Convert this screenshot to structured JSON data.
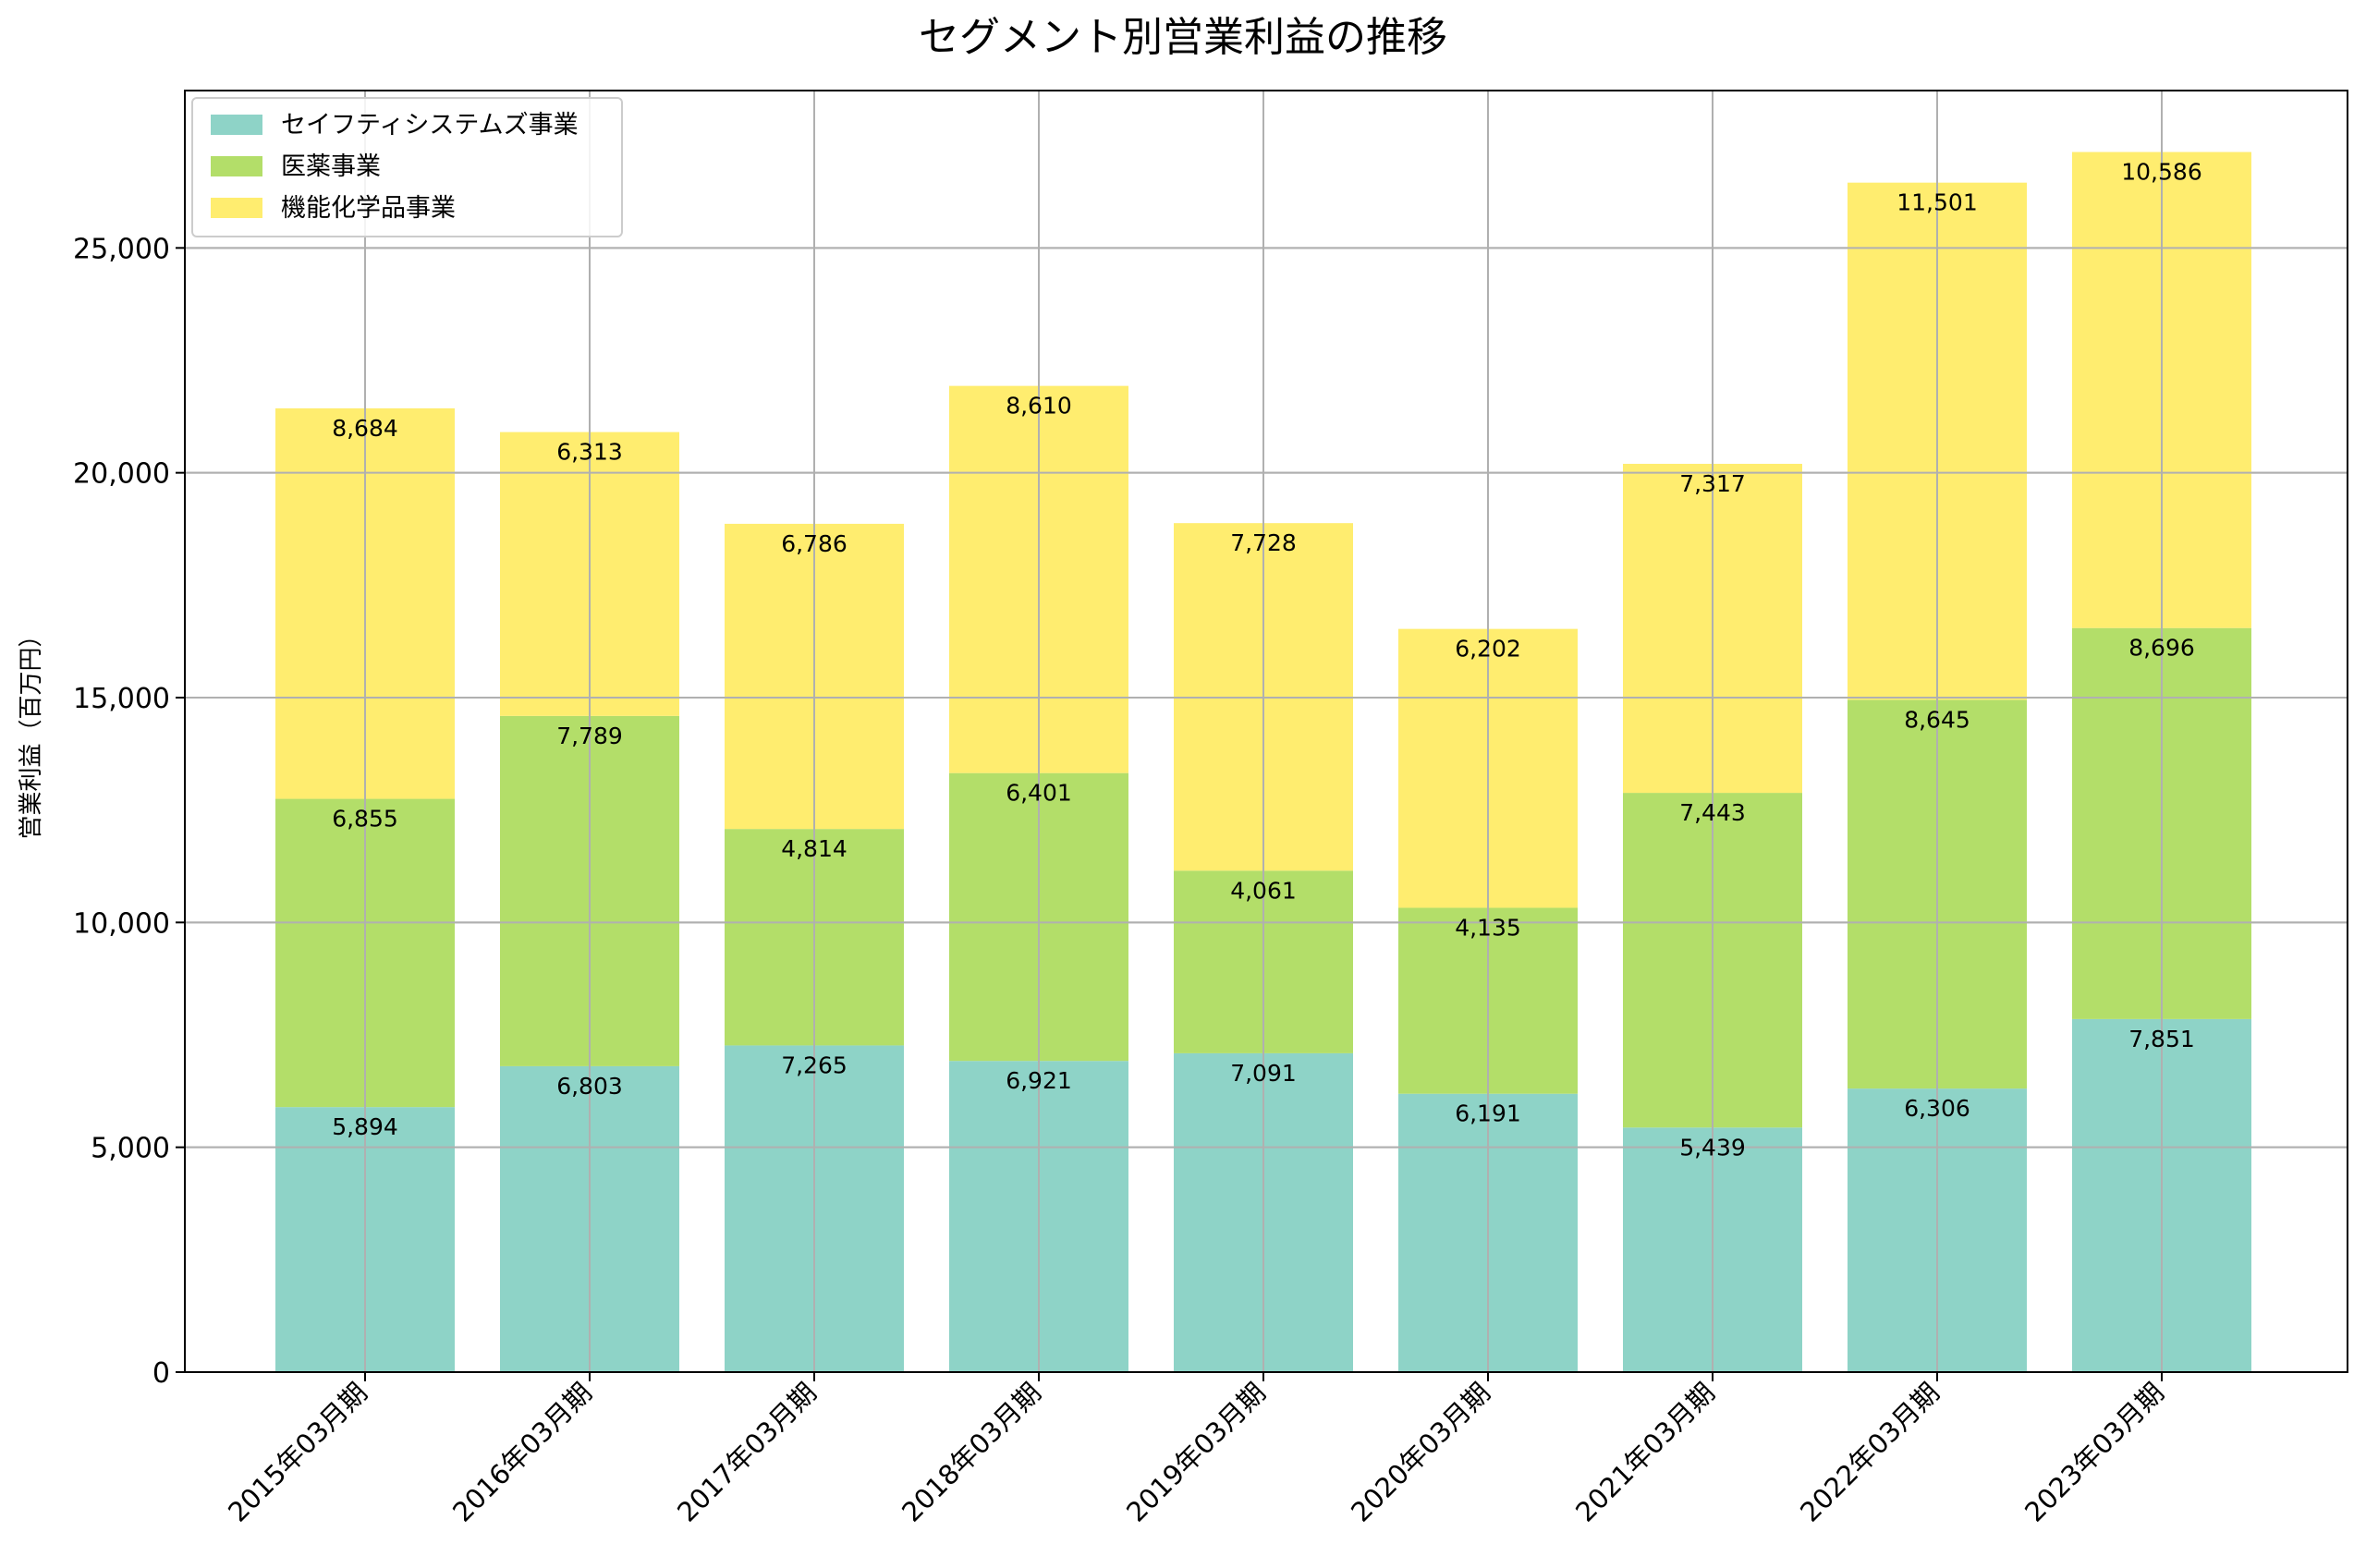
{
  "chart_data": {
    "type": "bar",
    "stacked": true,
    "title": "セグメント別営業利益の推移",
    "xlabel": "",
    "ylabel": "営業利益（百万円）",
    "ylim": [
      0,
      28500
    ],
    "yticks": [
      0,
      5000,
      10000,
      15000,
      20000,
      25000
    ],
    "ytick_labels": [
      "0",
      "5,000",
      "10,000",
      "15,000",
      "20,000",
      "25,000"
    ],
    "grid": true,
    "legend_position": "top-left",
    "categories": [
      "2015年03月期",
      "2016年03月期",
      "2017年03月期",
      "2018年03月期",
      "2019年03月期",
      "2020年03月期",
      "2021年03月期",
      "2022年03月期",
      "2023年03月期"
    ],
    "series": [
      {
        "name": "セイフティシステムズ事業",
        "color": "#8ed3c7",
        "values": [
          5894,
          6803,
          7265,
          6921,
          7091,
          6191,
          5439,
          6306,
          7851
        ],
        "labels": [
          "5,894",
          "6,803",
          "7,265",
          "6,921",
          "7,091",
          "6,191",
          "5,439",
          "6,306",
          "7,851"
        ]
      },
      {
        "name": "医薬事業",
        "color": "#b3de69",
        "values": [
          6855,
          7789,
          4814,
          6401,
          4061,
          4135,
          7443,
          8645,
          8696
        ],
        "labels": [
          "6,855",
          "7,789",
          "4,814",
          "6,401",
          "4,061",
          "4,135",
          "7,443",
          "8,645",
          "8,696"
        ]
      },
      {
        "name": "機能化学品事業",
        "color": "#ffed6f",
        "values": [
          8684,
          6313,
          6786,
          8610,
          7728,
          6202,
          7317,
          11501,
          10586
        ],
        "labels": [
          "8,684",
          "6,313",
          "6,786",
          "8,610",
          "7,728",
          "6,202",
          "7,317",
          "11,501",
          "10,586"
        ]
      }
    ]
  }
}
